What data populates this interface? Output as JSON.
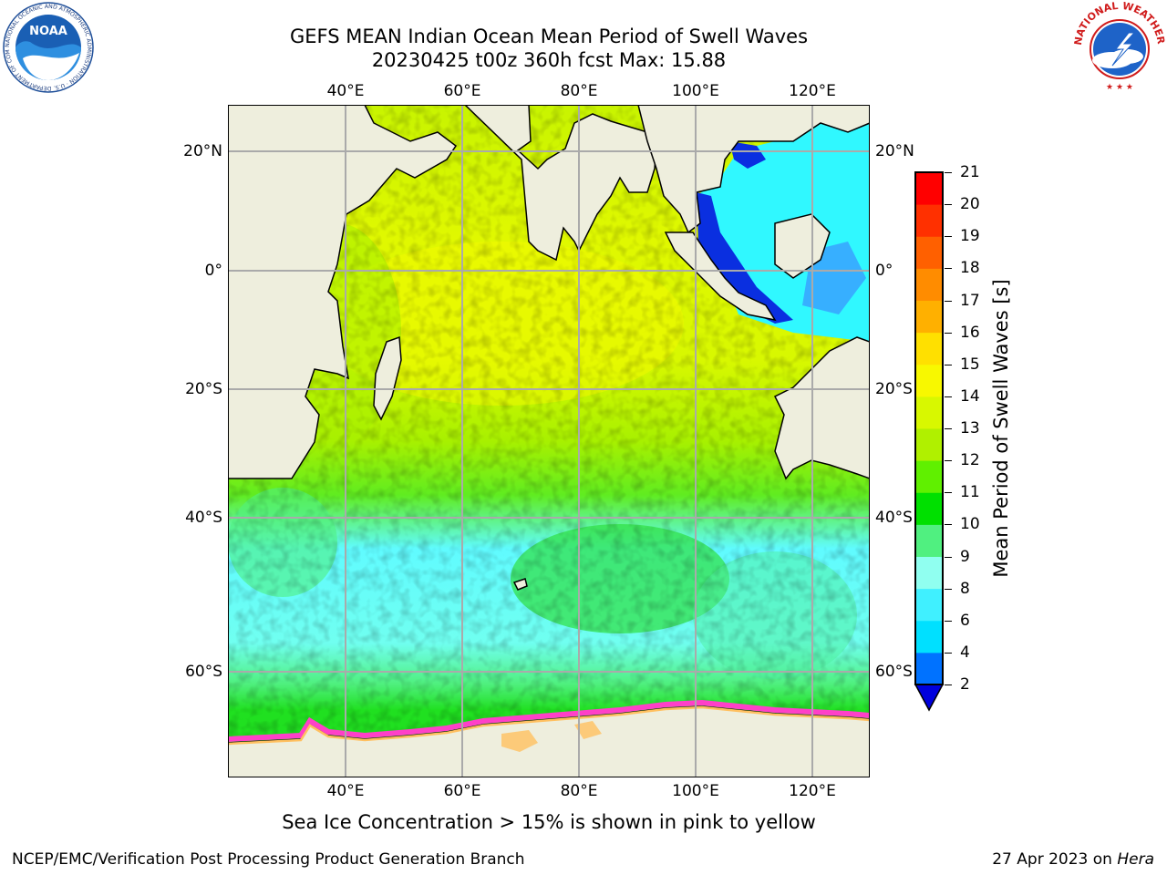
{
  "title_line1": "GEFS MEAN Indian Ocean Mean Period of Swell Waves",
  "title_line2": "20230425 t00z 360h fcst   Max: 15.88",
  "lon_ticks": [
    "40°E",
    "60°E",
    "80°E",
    "100°E",
    "120°E"
  ],
  "lat_ticks": [
    "20°N",
    "0°",
    "20°S",
    "40°S",
    "60°S"
  ],
  "colorbar": {
    "label": "Mean Period of Swell Waves [s]",
    "ticks": [
      "2",
      "4",
      "6",
      "8",
      "9",
      "10",
      "11",
      "12",
      "13",
      "14",
      "15",
      "16",
      "17",
      "18",
      "19",
      "20",
      "21"
    ],
    "colors": [
      "#0072ff",
      "#00e0ff",
      "#40f0ff",
      "#90fff0",
      "#50f080",
      "#00e000",
      "#60f000",
      "#b0f000",
      "#d8f800",
      "#f8f800",
      "#ffe000",
      "#ffb000",
      "#ff8c00",
      "#ff6000",
      "#ff3000",
      "#ff0000"
    ],
    "under_color": "#0000dd"
  },
  "ice_note": "Sea Ice Concentration > 15% is shown in pink to yellow",
  "footer_left": "NCEP/EMC/Verification Post Processing Product Generation Branch",
  "footer_date": "27 Apr 2023 on",
  "footer_machine": "Hera",
  "logos": {
    "noaa_text": "NOAA",
    "noaa_ring": "NATIONAL OCEANIC AND ATMOSPHERIC ADMINISTRATION · U.S. DEPARTMENT OF COMMERCE",
    "nws_ring": "NATIONAL WEATHER SERVICE"
  }
}
